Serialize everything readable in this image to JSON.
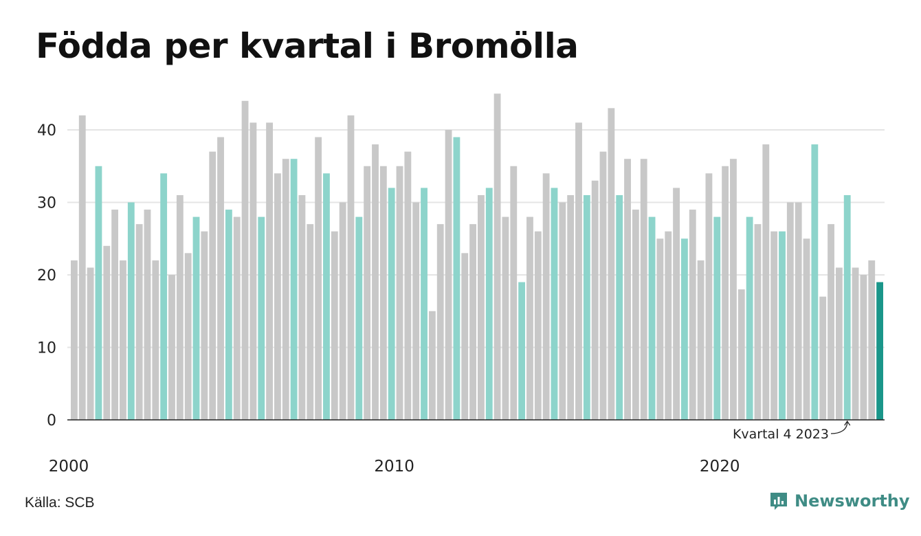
{
  "header": {
    "title": "Födda per kvartal i Bromölla"
  },
  "footer": {
    "source": "Källa: SCB",
    "brand": "Newsworthy"
  },
  "colors": {
    "default": "#c8c8c8",
    "q4": "#8dd4cb",
    "latest": "#1a968a"
  },
  "chart_data": {
    "type": "bar",
    "title": "Födda per kvartal i Bromölla",
    "xlabel": "",
    "ylabel": "",
    "ylim": [
      0,
      45
    ],
    "yticks": [
      0,
      10,
      20,
      30,
      40
    ],
    "xtick_labels": [
      "2000",
      "2010",
      "2020"
    ],
    "grid": true,
    "annotation": {
      "text": "Kvartal 4 2023",
      "target_index": 95
    },
    "start_year": 2000,
    "values": [
      22,
      42,
      21,
      35,
      24,
      29,
      22,
      30,
      27,
      29,
      22,
      34,
      20,
      31,
      23,
      28,
      26,
      37,
      39,
      29,
      28,
      44,
      41,
      28,
      41,
      34,
      36,
      36,
      31,
      27,
      39,
      34,
      26,
      30,
      42,
      28,
      35,
      38,
      35,
      32,
      35,
      37,
      30,
      32,
      15,
      27,
      40,
      39,
      23,
      27,
      31,
      32,
      45,
      28,
      35,
      19,
      28,
      26,
      34,
      32,
      30,
      31,
      41,
      31,
      33,
      37,
      43,
      31,
      36,
      29,
      36,
      28,
      25,
      26,
      32,
      25,
      29,
      22,
      34,
      28,
      35,
      36,
      18,
      28,
      27,
      38,
      26,
      26,
      30,
      30,
      25,
      38,
      17,
      27,
      21,
      31,
      21,
      20,
      22,
      19
    ]
  }
}
